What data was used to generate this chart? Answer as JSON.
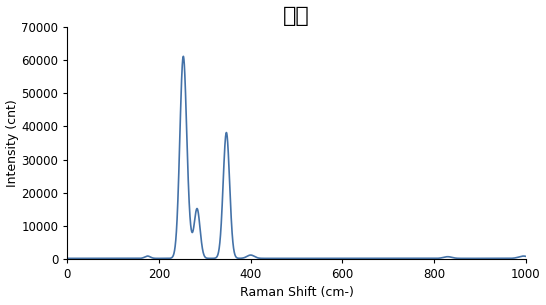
{
  "title": "진사",
  "xlabel": "Raman Shift (cm-)",
  "ylabel": "Intensity (cnt)",
  "xlim": [
    0,
    1000
  ],
  "ylim": [
    0,
    70000
  ],
  "xticks": [
    0,
    200,
    400,
    600,
    800,
    1000
  ],
  "yticks": [
    0,
    10000,
    20000,
    30000,
    40000,
    50000,
    60000,
    70000
  ],
  "ytick_labels": [
    "0",
    "10000",
    "20000",
    "30000",
    "40000",
    "50000",
    "60000",
    "70000"
  ],
  "line_color": "#4472a8",
  "line_width": 1.2,
  "background_color": "#ffffff",
  "title_fontsize": 16,
  "axis_label_fontsize": 9,
  "tick_fontsize": 8.5
}
